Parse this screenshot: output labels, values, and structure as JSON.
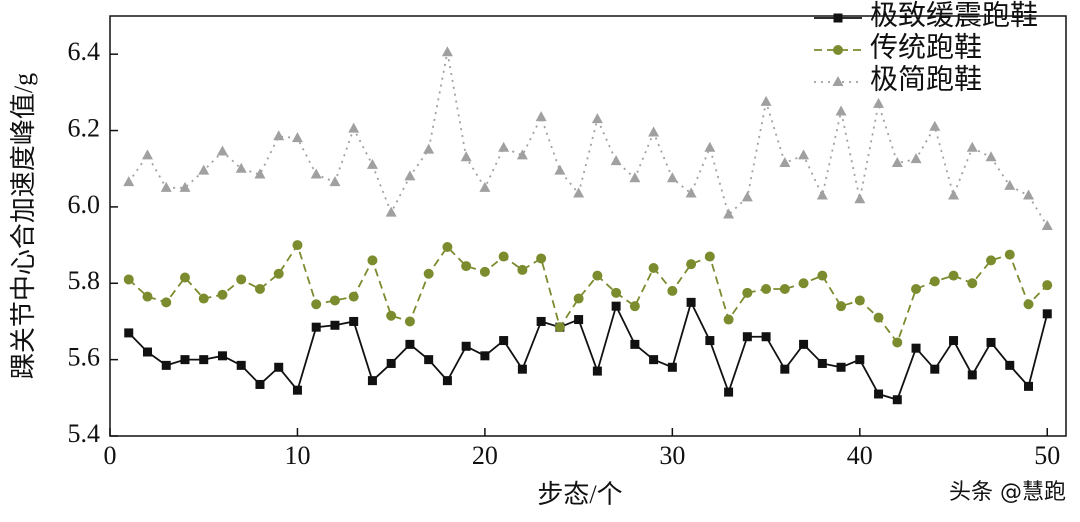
{
  "chart_data": {
    "type": "line",
    "xlabel": "步态/个",
    "ylabel": "踝关节中心合加速度峰值/g",
    "watermark": "头条 @慧跑",
    "x": [
      1,
      2,
      3,
      4,
      5,
      6,
      7,
      8,
      9,
      10,
      11,
      12,
      13,
      14,
      15,
      16,
      17,
      18,
      19,
      20,
      21,
      22,
      23,
      24,
      25,
      26,
      27,
      28,
      29,
      30,
      31,
      32,
      33,
      34,
      35,
      36,
      37,
      38,
      39,
      40,
      41,
      42,
      43,
      44,
      45,
      46,
      47,
      48,
      49,
      50
    ],
    "series": [
      {
        "name": "极致缓震跑鞋",
        "color": "#111111",
        "marker": "square",
        "line_style": "solid",
        "values": [
          5.67,
          5.62,
          5.585,
          5.6,
          5.6,
          5.61,
          5.585,
          5.535,
          5.58,
          5.52,
          5.685,
          5.69,
          5.7,
          5.545,
          5.59,
          5.64,
          5.6,
          5.545,
          5.635,
          5.61,
          5.65,
          5.575,
          5.7,
          5.685,
          5.705,
          5.57,
          5.74,
          5.64,
          5.6,
          5.58,
          5.75,
          5.65,
          5.515,
          5.66,
          5.66,
          5.575,
          5.64,
          5.59,
          5.58,
          5.6,
          5.51,
          5.495,
          5.63,
          5.575,
          5.65,
          5.56,
          5.645,
          5.585,
          5.53,
          5.72
        ]
      },
      {
        "name": "传统跑鞋",
        "color": "#7a8c2e",
        "marker": "circle",
        "line_style": "dashed",
        "values": [
          5.81,
          5.765,
          5.75,
          5.815,
          5.76,
          5.77,
          5.81,
          5.785,
          5.825,
          5.9,
          5.745,
          5.755,
          5.765,
          5.86,
          5.715,
          5.7,
          5.825,
          5.895,
          5.845,
          5.83,
          5.87,
          5.835,
          5.865,
          5.685,
          5.76,
          5.82,
          5.775,
          5.74,
          5.84,
          5.78,
          5.85,
          5.87,
          5.705,
          5.775,
          5.785,
          5.785,
          5.8,
          5.82,
          5.74,
          5.755,
          5.71,
          5.645,
          5.785,
          5.805,
          5.82,
          5.8,
          5.86,
          5.875,
          5.745,
          5.795
        ]
      },
      {
        "name": "极简跑鞋",
        "color": "#a0a0a0",
        "marker": "triangle",
        "line_style": "dotted",
        "values": [
          6.065,
          6.135,
          6.05,
          6.05,
          6.095,
          6.145,
          6.1,
          6.085,
          6.185,
          6.18,
          6.085,
          6.065,
          6.205,
          6.11,
          5.985,
          6.08,
          6.15,
          6.405,
          6.13,
          6.05,
          6.155,
          6.135,
          6.235,
          6.095,
          6.035,
          6.23,
          6.12,
          6.075,
          6.195,
          6.075,
          6.035,
          6.155,
          5.98,
          6.025,
          6.275,
          6.115,
          6.135,
          6.03,
          6.25,
          6.02,
          6.27,
          6.115,
          6.125,
          6.21,
          6.03,
          6.155,
          6.13,
          6.055,
          6.03,
          5.95
        ]
      }
    ],
    "xlim": [
      0,
      51
    ],
    "ylim": [
      5.4,
      6.5
    ],
    "xticks": [
      0,
      10,
      20,
      30,
      40,
      50
    ],
    "yticks": [
      5.4,
      5.6,
      5.8,
      {
        "value": 6,
        "label": "6.0"
      },
      6.2,
      6.4
    ],
    "legend": "top-right",
    "grid": false
  }
}
